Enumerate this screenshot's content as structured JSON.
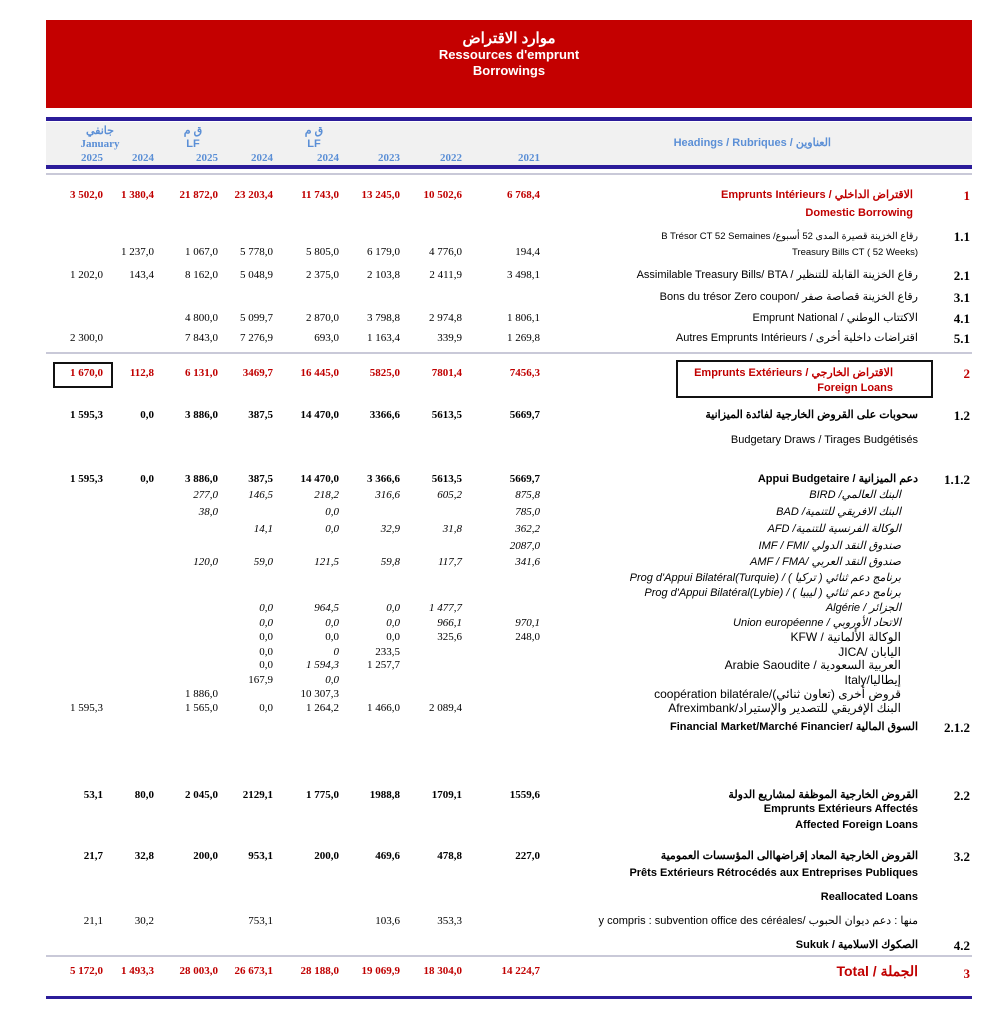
{
  "banner": {
    "title_ar": "موارد الاقتراض",
    "title_fr": "Ressources d'emprunt",
    "title_en": "Borrowings"
  },
  "header": {
    "january_ar": "جانفي",
    "january": "January",
    "lf_ar": "ق م",
    "lf": "LF",
    "years": [
      "2025",
      "2024",
      "2025",
      "2024",
      "2024",
      "2023",
      "2022",
      "2021"
    ],
    "headings": "Headings / Rubriques / العناوين"
  },
  "colors": {
    "banner": "#c40000",
    "rule": "#2b1c9a",
    "header_text": "#5b8fd6",
    "accent_red": "#c00000"
  },
  "rows": [
    {
      "num": "1",
      "style": "b r",
      "values": [
        "3 502,0",
        "1 380,4",
        "21 872,0",
        "23 203,4",
        "11 743,0",
        "13 245,0",
        "10 502,6",
        "6 768,4"
      ],
      "labels": [
        "Emprunts Intérieurs / الاقتراض الداخلي",
        "Domestic Borrowing"
      ]
    },
    {
      "num": "1.1",
      "style": "",
      "values": [
        "",
        "1 237,0",
        "1 067,0",
        "5 778,0",
        "5 805,0",
        "6 179,0",
        "4 776,0",
        "194,4"
      ],
      "labels": [
        "B Trésor CT 52 Semaines /رقاع الخزينة قصيرة المدى 52 أسبوع",
        "Treasury Bills CT ( 52 Weeks)"
      ]
    },
    {
      "num": "2.1",
      "style": "",
      "values": [
        "1 202,0",
        "143,4",
        "8 162,0",
        "5 048,9",
        "2 375,0",
        "2 103,8",
        "2 411,9",
        "3 498,1"
      ],
      "labels": [
        "Assimilable Treasury Bills/ BTA / رقاع الخزينة القابلة للتنظير"
      ]
    },
    {
      "num": "3.1",
      "style": "",
      "values": [
        "",
        "",
        "",
        "",
        "",
        "",
        "",
        ""
      ],
      "labels": [
        "Bons du trésor Zero coupon/ رقاع الخزينة قصاصة صفر"
      ]
    },
    {
      "num": "4.1",
      "style": "",
      "values": [
        "",
        "",
        "4 800,0",
        "5 099,7",
        "2 870,0",
        "3 798,8",
        "2 974,8",
        "1 806,1"
      ],
      "labels": [
        "Emprunt National / الاكتتاب الوطني"
      ]
    },
    {
      "num": "5.1",
      "style": "",
      "values": [
        "2 300,0",
        "",
        "7 843,0",
        "7 276,9",
        "693,0",
        "1 163,4",
        "339,9",
        "1 269,8"
      ],
      "labels": [
        "Autres Emprunts Intérieurs / اقتراضات داخلية أخرى"
      ]
    },
    {
      "num": "2",
      "style": "b r",
      "values": [
        "1 670,0",
        "112,8",
        "6 131,0",
        "3469,7",
        "16 445,0",
        "5825,0",
        "7801,4",
        "7456,3"
      ],
      "labels": [
        "Emprunts Extérieurs / الاقتراض الخارجي",
        "Foreign Loans"
      ]
    },
    {
      "num": "1.2",
      "style": "b",
      "values": [
        "1 595,3",
        "0,0",
        "3 886,0",
        "387,5",
        "14 470,0",
        "3366,6",
        "5613,5",
        "5669,7"
      ],
      "labels": [
        "سحوبات على القروض الخارجية لفائدة الميزانية",
        "Budgetary Draws / Tirages Budgétisés"
      ]
    },
    {
      "num": "1.1.2",
      "style": "b",
      "values": [
        "1 595,3",
        "0,0",
        "3 886,0",
        "387,5",
        "14 470,0",
        "3 366,6",
        "5613,5",
        "5669,7"
      ],
      "labels": [
        "Appui Budgetaire / دعم الميزانية"
      ]
    },
    {
      "num": "",
      "style": "i",
      "values": [
        "",
        "",
        "277,0",
        "146,5",
        "218,2",
        "316,6",
        "605,2",
        "875,8"
      ],
      "labels": [
        "BIRD /البنك العالمي"
      ]
    },
    {
      "num": "",
      "style": "i",
      "values": [
        "",
        "",
        "38,0",
        "",
        "0,0",
        "",
        "",
        "785,0"
      ],
      "labels": [
        "BAD /البنك الافريقي للتنمية"
      ]
    },
    {
      "num": "",
      "style": "i",
      "values": [
        "",
        "",
        "",
        "14,1",
        "0,0",
        "32,9",
        "31,8",
        "362,2"
      ],
      "labels": [
        "AFD /الوكالة الفرنسية للتنمية"
      ]
    },
    {
      "num": "",
      "style": "i",
      "values": [
        "",
        "",
        "",
        "",
        "",
        "",
        "",
        "2087,0"
      ],
      "labels": [
        "IMF / FMI/ صندوق النقد الدولي"
      ]
    },
    {
      "num": "",
      "style": "i",
      "values": [
        "",
        "",
        "120,0",
        "59,0",
        "121,5",
        "59,8",
        "117,7",
        "341,6"
      ],
      "labels": [
        "AMF / FMA/ صندوق النقد العربي"
      ]
    },
    {
      "num": "",
      "style": "i",
      "values": [
        "",
        "",
        "",
        "",
        "",
        "",
        "",
        ""
      ],
      "labels": [
        "Prog d'Appui Bilatéral(Turquie) / ( تركيا ) برنامج دعم ثنائي"
      ]
    },
    {
      "num": "",
      "style": "i",
      "values": [
        "",
        "",
        "",
        "",
        "",
        "",
        "",
        ""
      ],
      "labels": [
        "Prog d'Appui Bilatéral(Lybie) / ( ليبيا ) برنامج دعم ثنائي"
      ]
    },
    {
      "num": "",
      "style": "i",
      "values": [
        "",
        "",
        "",
        "0,0",
        "964,5",
        "0,0",
        "1 477,7",
        ""
      ],
      "labels": [
        "Algérie / الجزائر"
      ]
    },
    {
      "num": "",
      "style": "i",
      "values": [
        "",
        "",
        "",
        "0,0",
        "0,0",
        "0,0",
        "966,1",
        "970,1"
      ],
      "labels": [
        "Union européenne / الاتحاد الأوروبي"
      ]
    },
    {
      "num": "",
      "style": "",
      "values": [
        "",
        "",
        "",
        "0,0",
        "0,0",
        "0,0",
        "325,6",
        "248,0"
      ],
      "labels": [
        "KFW / الوكالة الألمانية"
      ]
    },
    {
      "num": "",
      "style": "",
      "values": [
        "",
        "",
        "",
        "0,0",
        "0",
        "233,5",
        "",
        ""
      ],
      "labels": [
        "JICA/ اليابان"
      ]
    },
    {
      "num": "",
      "style": "",
      "values": [
        "",
        "",
        "",
        "0,0",
        "1 594,3",
        "1 257,7",
        "",
        ""
      ],
      "labels": [
        "Arabie Saoudite / العربية السعودية"
      ]
    },
    {
      "num": "",
      "style": "",
      "values": [
        "",
        "",
        "",
        "167,9",
        "0,0",
        "",
        "",
        ""
      ],
      "labels": [
        "Italy/إيطاليا"
      ]
    },
    {
      "num": "",
      "style": "",
      "values": [
        "",
        "",
        "1 886,0",
        "",
        "10 307,3",
        "",
        "",
        ""
      ],
      "labels": [
        "coopération bilatérale/(تعاون ثنائي) قروض أخرى"
      ]
    },
    {
      "num": "",
      "style": "",
      "values": [
        "1 595,3",
        "",
        "1 565,0",
        "0,0",
        "1 264,2",
        "1 466,0",
        "2 089,4",
        ""
      ],
      "labels": [
        "Afreximbank/البنك الإفريقي للتصدير والإستيراد"
      ]
    },
    {
      "num": "2.1.2",
      "style": "b",
      "values": [
        "",
        "",
        "",
        "",
        "",
        "",
        "",
        ""
      ],
      "labels": [
        "Financial Market/Marché Financier/ السوق المالية"
      ]
    },
    {
      "num": "2.2",
      "style": "b",
      "values": [
        "53,1",
        "80,0",
        "2 045,0",
        "2129,1",
        "1 775,0",
        "1988,8",
        "1709,1",
        "1559,6"
      ],
      "labels": [
        "القروض الخارجية الموظفة لمشاريع الدولة",
        "Emprunts Extérieurs Affectés",
        "Affected Foreign Loans"
      ]
    },
    {
      "num": "3.2",
      "style": "b",
      "values": [
        "21,7",
        "32,8",
        "200,0",
        "953,1",
        "200,0",
        "469,6",
        "478,8",
        "227,0"
      ],
      "labels": [
        "القروض الخارجية المعاد إقراضهاالى المؤسسات العمومية",
        "Prêts Extérieurs Rétrocédés aux Entreprises Publiques",
        "Reallocated Loans"
      ]
    },
    {
      "num": "",
      "style": "",
      "values": [
        "21,1",
        "30,2",
        "",
        "753,1",
        "",
        "103,6",
        "353,3",
        ""
      ],
      "labels": [
        "y compris : subvention office des céréales/ منها : دعم ديوان الحبوب"
      ]
    },
    {
      "num": "4.2",
      "style": "b",
      "values": [
        "",
        "",
        "",
        "",
        "",
        "",
        "",
        ""
      ],
      "labels": [
        "Sukuk / الصكوك الاسلامية"
      ]
    },
    {
      "num": "3",
      "style": "b r",
      "values": [
        "5 172,0",
        "1 493,3",
        "28 003,0",
        "26 673,1",
        "28 188,0",
        "19 069,9",
        "18 304,0",
        "14 224,7"
      ],
      "labels": [
        "Total / الجملة"
      ]
    }
  ]
}
